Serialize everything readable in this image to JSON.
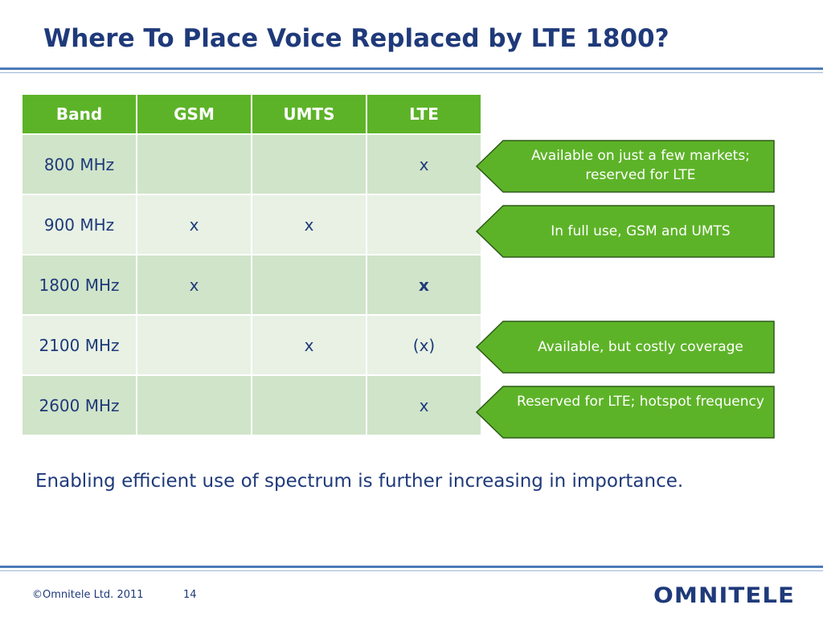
{
  "slide": {
    "title": "Where To Place Voice Replaced by LTE 1800?",
    "statement": "Enabling efficient use of spectrum is further increasing in importance.",
    "footer": {
      "copyright": "©Omnitele Ltd. 2011",
      "page_number": "14",
      "logo_text": "OMNITELE"
    }
  },
  "table": {
    "headers": [
      "Band",
      "GSM",
      "UMTS",
      "LTE"
    ],
    "rows": [
      [
        "800 MHz",
        "",
        "",
        "x"
      ],
      [
        "900 MHz",
        "x",
        "x",
        ""
      ],
      [
        "1800 MHz",
        "x",
        "",
        "x"
      ],
      [
        "2100 MHz",
        "",
        "x",
        "(x)"
      ],
      [
        "2600 MHz",
        "",
        "",
        "x"
      ]
    ]
  },
  "callouts": [
    {
      "text": "Available on just a few markets; reserved for LTE"
    },
    {
      "text": "In full use, GSM and UMTS"
    },
    {
      "text": "Available, but costly coverage"
    },
    {
      "text": "Reserved for LTE; hotspot frequency"
    }
  ],
  "colors": {
    "header_green": "#5db328",
    "callout_green": "#5db328",
    "title_blue": "#1f3a7a",
    "row_dark": "#d0e4c9",
    "row_light": "#e8f1e4"
  }
}
